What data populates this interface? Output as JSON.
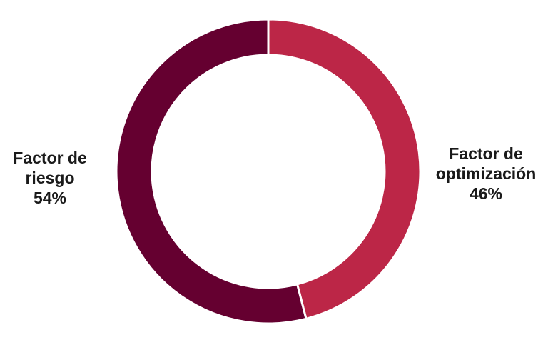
{
  "chart_data": {
    "type": "pie",
    "variant": "donut",
    "start_angle_deg": 0,
    "direction": "clockwise",
    "slices": [
      {
        "label_lines": [
          "Factor de",
          "optimización"
        ],
        "value": 46,
        "value_label": "46%",
        "color": "#BC2647"
      },
      {
        "label_lines": [
          "Factor de",
          "riesgo"
        ],
        "value": 54,
        "value_label": "54%",
        "color": "#650030"
      }
    ],
    "separator_color": "#ffffff",
    "legend": "none"
  }
}
